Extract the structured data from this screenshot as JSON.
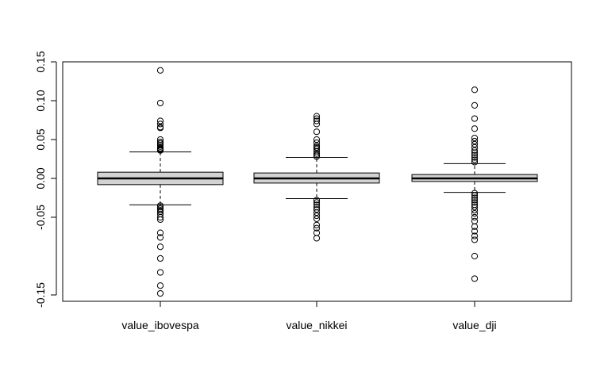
{
  "chart_data": {
    "type": "boxplot",
    "title": "",
    "xlabel": "",
    "ylabel": "",
    "ylim": [
      -0.158,
      0.15
    ],
    "y_ticks": [
      0.15,
      0.1,
      0.05,
      0.0,
      -0.05,
      -0.15
    ],
    "y_tick_labels": [
      "0.15",
      "0.10",
      "0.05",
      "0.00",
      "-0.05",
      "-0.15"
    ],
    "categories": [
      "value_ibovespa",
      "value_nikkei",
      "value_dji"
    ],
    "box_fill": "#d3d3d3",
    "series": [
      {
        "name": "value_ibovespa",
        "whisker_low": -0.034,
        "q1": -0.008,
        "median": 0.0,
        "q3": 0.008,
        "whisker_high": 0.034,
        "outliers": [
          0.139,
          0.097,
          0.074,
          0.07,
          0.066,
          0.065,
          0.05,
          0.047,
          0.045,
          0.043,
          0.041,
          0.039,
          0.038,
          0.037,
          0.036,
          -0.035,
          -0.037,
          -0.039,
          -0.041,
          -0.043,
          -0.046,
          -0.05,
          -0.053,
          -0.07,
          -0.076,
          -0.088,
          -0.103,
          -0.121,
          -0.138,
          -0.148
        ]
      },
      {
        "name": "value_nikkei",
        "whisker_low": -0.026,
        "q1": -0.006,
        "median": 0.0,
        "q3": 0.007,
        "whisker_high": 0.027,
        "outliers": [
          0.08,
          0.077,
          0.074,
          0.07,
          0.06,
          0.05,
          0.046,
          0.042,
          0.04,
          0.038,
          0.035,
          0.032,
          0.03,
          0.028,
          -0.028,
          -0.031,
          -0.034,
          -0.037,
          -0.04,
          -0.044,
          -0.048,
          -0.052,
          -0.06,
          -0.064,
          -0.07,
          -0.077
        ]
      },
      {
        "name": "value_dji",
        "whisker_low": -0.018,
        "q1": -0.004,
        "median": 0.0,
        "q3": 0.005,
        "whisker_high": 0.019,
        "outliers": [
          0.114,
          0.094,
          0.077,
          0.064,
          0.052,
          0.048,
          0.044,
          0.04,
          0.036,
          0.033,
          0.03,
          0.027,
          0.024,
          0.021,
          -0.019,
          -0.022,
          -0.025,
          -0.028,
          -0.031,
          -0.034,
          -0.037,
          -0.041,
          -0.045,
          -0.05,
          -0.055,
          -0.062,
          -0.068,
          -0.074,
          -0.079,
          -0.1,
          -0.129
        ]
      }
    ]
  }
}
